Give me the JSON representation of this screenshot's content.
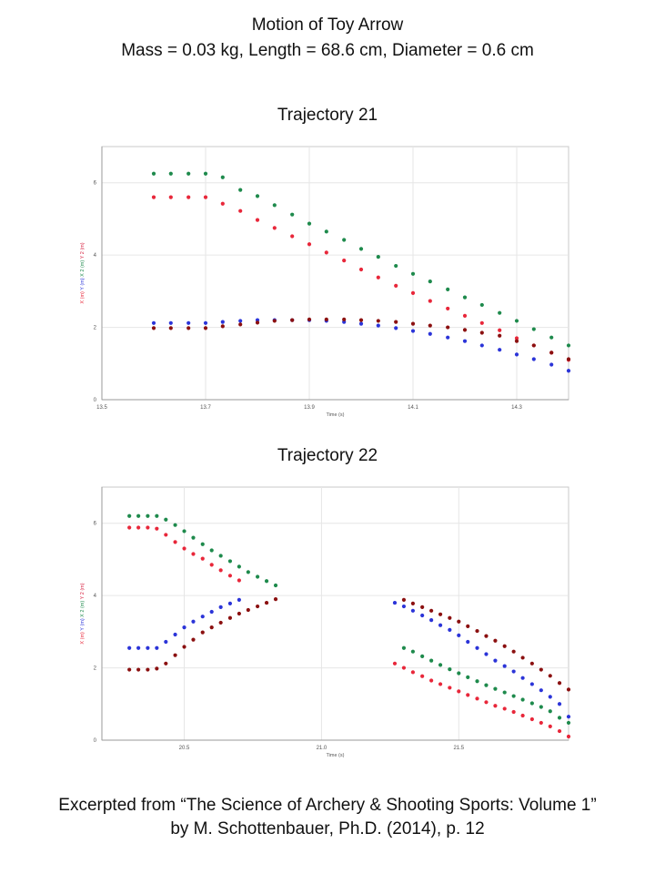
{
  "header": {
    "title_line1": "Motion of Toy Arrow",
    "title_line2": "Mass = 0.03 kg, Length = 68.6 cm, Diameter = 0.6 cm"
  },
  "footer": {
    "line1": "Excerpted from “The Science of Archery & Shooting Sports: Volume 1”",
    "line2": "by M. Schottenbauer, Ph.D. (2014), p. 12"
  },
  "chart_data": [
    {
      "type": "scatter",
      "title": "Trajectory 21",
      "xlabel": "Time (s)",
      "ylabel_parts": [
        {
          "text": "X (m)",
          "color": "#e8273a"
        },
        {
          "text": "Y (m)",
          "color": "#2b34d8"
        },
        {
          "text": "X 2 (m)",
          "color": "#1e8a4c"
        },
        {
          "text": "Y 2 (m)",
          "color": "#d61d3c"
        }
      ],
      "xlim": [
        13.5,
        14.4
      ],
      "ylim": [
        0,
        7
      ],
      "xticks": [
        13.5,
        13.7,
        13.9,
        14.1,
        14.3
      ],
      "xtick_labels": [
        "13.5",
        "13.7",
        "13.9",
        "14.1",
        "14.3"
      ],
      "yticks": [
        0,
        2,
        4,
        6
      ],
      "ytick_labels": [
        "0",
        "2",
        "4",
        "6"
      ],
      "grid": true,
      "series": [
        {
          "color": "#1e8a4c",
          "x": [
            13.6,
            13.633,
            13.667,
            13.7,
            13.733,
            13.767,
            13.8,
            13.833,
            13.867,
            13.9,
            13.933,
            13.967,
            14.0,
            14.033,
            14.067,
            14.1,
            14.133,
            14.167,
            14.2,
            14.233,
            14.267,
            14.3,
            14.333,
            14.367,
            14.4
          ],
          "y": [
            6.25,
            6.25,
            6.25,
            6.25,
            6.15,
            5.8,
            5.63,
            5.38,
            5.12,
            4.87,
            4.65,
            4.42,
            4.17,
            3.95,
            3.7,
            3.48,
            3.27,
            3.05,
            2.83,
            2.62,
            2.4,
            2.18,
            1.95,
            1.72,
            1.5
          ]
        },
        {
          "color": "#e8273a",
          "x": [
            13.6,
            13.633,
            13.667,
            13.7,
            13.733,
            13.767,
            13.8,
            13.833,
            13.867,
            13.9,
            13.933,
            13.967,
            14.0,
            14.033,
            14.067,
            14.1,
            14.133,
            14.167,
            14.2,
            14.233,
            14.267,
            14.3,
            14.333,
            14.367,
            14.4
          ],
          "y": [
            5.6,
            5.6,
            5.6,
            5.6,
            5.42,
            5.22,
            4.97,
            4.75,
            4.52,
            4.3,
            4.07,
            3.85,
            3.6,
            3.38,
            3.15,
            2.95,
            2.73,
            2.52,
            2.32,
            2.12,
            1.92,
            1.7,
            1.5,
            1.3,
            1.1
          ]
        },
        {
          "color": "#2b34d8",
          "x": [
            13.6,
            13.633,
            13.667,
            13.7,
            13.733,
            13.767,
            13.8,
            13.833,
            13.867,
            13.9,
            13.933,
            13.967,
            14.0,
            14.033,
            14.067,
            14.1,
            14.133,
            14.167,
            14.2,
            14.233,
            14.267,
            14.3,
            14.333,
            14.367,
            14.4
          ],
          "y": [
            2.12,
            2.12,
            2.12,
            2.12,
            2.15,
            2.18,
            2.2,
            2.2,
            2.2,
            2.2,
            2.18,
            2.15,
            2.1,
            2.05,
            1.98,
            1.9,
            1.82,
            1.72,
            1.62,
            1.5,
            1.38,
            1.25,
            1.12,
            0.97,
            0.8
          ]
        },
        {
          "color": "#8b1010",
          "x": [
            13.6,
            13.633,
            13.667,
            13.7,
            13.733,
            13.767,
            13.8,
            13.833,
            13.867,
            13.9,
            13.933,
            13.967,
            14.0,
            14.033,
            14.067,
            14.1,
            14.133,
            14.167,
            14.2,
            14.233,
            14.267,
            14.3,
            14.333,
            14.367,
            14.4
          ],
          "y": [
            1.98,
            1.98,
            1.98,
            1.98,
            2.03,
            2.08,
            2.13,
            2.18,
            2.2,
            2.22,
            2.22,
            2.22,
            2.2,
            2.18,
            2.15,
            2.1,
            2.05,
            2.0,
            1.93,
            1.85,
            1.77,
            1.62,
            1.5,
            1.3,
            1.12
          ]
        }
      ]
    },
    {
      "type": "scatter",
      "title": "Trajectory 22",
      "xlabel": "Time (s)",
      "ylabel_parts": [
        {
          "text": "X (m)",
          "color": "#e8273a"
        },
        {
          "text": "Y (m)",
          "color": "#2b34d8"
        },
        {
          "text": "X 2 (m)",
          "color": "#1e8a4c"
        },
        {
          "text": "Y 2 (m)",
          "color": "#d61d3c"
        }
      ],
      "xlim": [
        20.2,
        21.9
      ],
      "ylim": [
        0,
        7
      ],
      "xticks": [
        20.5,
        21.0,
        21.5
      ],
      "xtick_labels": [
        "20.5",
        "21.0",
        "21.5"
      ],
      "yticks": [
        0,
        2,
        4,
        6
      ],
      "ytick_labels": [
        "0",
        "2",
        "4",
        "6"
      ],
      "grid": true,
      "series": [
        {
          "color": "#1e8a4c",
          "x": [
            20.3,
            20.333,
            20.367,
            20.4,
            20.433,
            20.467,
            20.5,
            20.533,
            20.567,
            20.6,
            20.633,
            20.667,
            20.7,
            20.733,
            20.767,
            20.8,
            20.833,
            21.3,
            21.333,
            21.367,
            21.4,
            21.433,
            21.467,
            21.5,
            21.533,
            21.567,
            21.6,
            21.633,
            21.667,
            21.7,
            21.733,
            21.767,
            21.8,
            21.833,
            21.867,
            21.9
          ],
          "y": [
            6.2,
            6.2,
            6.2,
            6.2,
            6.1,
            5.95,
            5.78,
            5.6,
            5.42,
            5.25,
            5.1,
            4.95,
            4.8,
            4.65,
            4.52,
            4.4,
            4.28,
            2.55,
            2.45,
            2.32,
            2.2,
            2.08,
            1.96,
            1.85,
            1.74,
            1.63,
            1.52,
            1.42,
            1.32,
            1.22,
            1.12,
            1.02,
            0.92,
            0.8,
            0.62,
            0.48
          ]
        },
        {
          "color": "#e8273a",
          "x": [
            20.3,
            20.333,
            20.367,
            20.4,
            20.433,
            20.467,
            20.5,
            20.533,
            20.567,
            20.6,
            20.633,
            20.667,
            20.7,
            21.267,
            21.3,
            21.333,
            21.367,
            21.4,
            21.433,
            21.467,
            21.5,
            21.533,
            21.567,
            21.6,
            21.633,
            21.667,
            21.7,
            21.733,
            21.767,
            21.8,
            21.833,
            21.867,
            21.9
          ],
          "y": [
            5.88,
            5.88,
            5.88,
            5.85,
            5.68,
            5.48,
            5.3,
            5.15,
            5.02,
            4.85,
            4.7,
            4.55,
            4.42,
            2.12,
            2.0,
            1.88,
            1.77,
            1.65,
            1.55,
            1.45,
            1.35,
            1.25,
            1.15,
            1.05,
            0.95,
            0.87,
            0.78,
            0.68,
            0.58,
            0.48,
            0.38,
            0.25,
            0.1
          ]
        },
        {
          "color": "#2b34d8",
          "x": [
            20.3,
            20.333,
            20.367,
            20.4,
            20.433,
            20.467,
            20.5,
            20.533,
            20.567,
            20.6,
            20.633,
            20.667,
            20.7,
            21.267,
            21.3,
            21.333,
            21.367,
            21.4,
            21.433,
            21.467,
            21.5,
            21.533,
            21.567,
            21.6,
            21.633,
            21.667,
            21.7,
            21.733,
            21.767,
            21.8,
            21.833,
            21.867,
            21.9
          ],
          "y": [
            2.55,
            2.55,
            2.55,
            2.55,
            2.72,
            2.92,
            3.12,
            3.28,
            3.42,
            3.55,
            3.68,
            3.78,
            3.88,
            3.8,
            3.7,
            3.58,
            3.45,
            3.32,
            3.18,
            3.05,
            2.9,
            2.72,
            2.55,
            2.38,
            2.2,
            2.05,
            1.9,
            1.72,
            1.55,
            1.38,
            1.2,
            1.0,
            0.65
          ]
        },
        {
          "color": "#8b1010",
          "x": [
            20.3,
            20.333,
            20.367,
            20.4,
            20.433,
            20.467,
            20.5,
            20.533,
            20.567,
            20.6,
            20.633,
            20.667,
            20.7,
            20.733,
            20.767,
            20.8,
            20.833,
            21.3,
            21.333,
            21.367,
            21.4,
            21.433,
            21.467,
            21.5,
            21.533,
            21.567,
            21.6,
            21.633,
            21.667,
            21.7,
            21.733,
            21.767,
            21.8,
            21.833,
            21.867,
            21.9
          ],
          "y": [
            1.95,
            1.95,
            1.95,
            1.98,
            2.12,
            2.35,
            2.58,
            2.78,
            2.98,
            3.12,
            3.25,
            3.38,
            3.5,
            3.6,
            3.7,
            3.8,
            3.9,
            3.88,
            3.78,
            3.68,
            3.58,
            3.48,
            3.38,
            3.28,
            3.15,
            3.02,
            2.88,
            2.75,
            2.6,
            2.45,
            2.28,
            2.12,
            1.95,
            1.78,
            1.58,
            1.4
          ]
        }
      ]
    }
  ]
}
